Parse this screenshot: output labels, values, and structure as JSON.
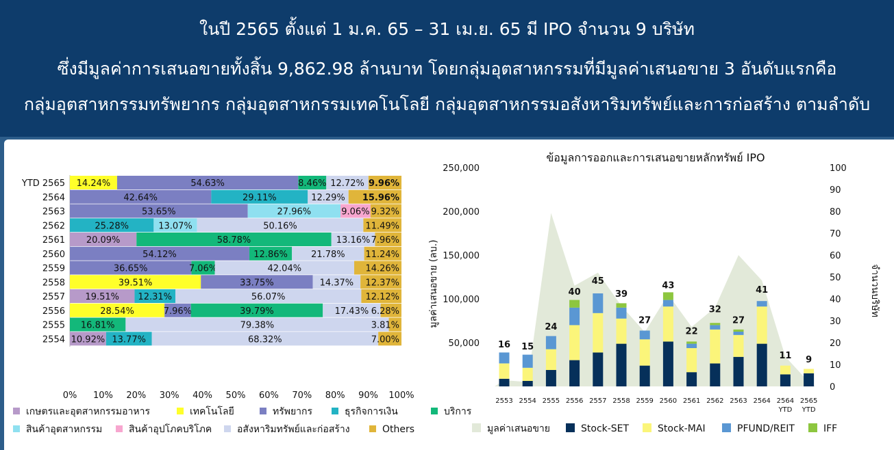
{
  "header": {
    "line1": "ในปี 2565 ตั้งแต่ 1 ม.ค. 65 – 31 เม.ย. 65 มี IPO จำนวน 9 บริษัท",
    "line2": "ซึ่งมีมูลค่าการเสนอขายทั้งสิ้น 9,862.98 ล้านบาท โดยกลุ่มอุตสาหกรรมที่มีมูลค่าเสนอขาย 3 อันดับแรกคือ",
    "line3": "กลุ่มอุตสาหกรรมทรัพยากร กลุ่มอุตสาหกรรมเทคโนโลยี กลุ่มอุตสาหกรรมอสังหาริมทรัพย์และการก่อสร้าง ตามลำดับ"
  },
  "colors": {
    "header_bg": "#0e3c6b",
    "ind_agro": "#b79ac9",
    "ind_tech": "#ffff2a",
    "ind_resource": "#7b7fc2",
    "ind_financial": "#23b3c4",
    "ind_services": "#13b87a",
    "ind_industrial": "#8fe0f0",
    "ind_consumer": "#f7a6cf",
    "ind_property": "#ced6ee",
    "ind_others": "#e0b53a",
    "value_area": "#e2e9d9",
    "set": "#06305a",
    "mai": "#fbf57a",
    "pfund": "#5a97d3",
    "iff": "#8dc63f"
  },
  "chart_data": [
    {
      "type": "bar",
      "orientation": "horizontal",
      "stacked": "percent",
      "categories": [
        "YTD 2565",
        "2564",
        "2563",
        "2562",
        "2561",
        "2560",
        "2559",
        "2558",
        "2557",
        "2556",
        "2555",
        "2554"
      ],
      "series": [
        {
          "name": "เกษตรและอุตสาหกรรมอาหาร",
          "color_key": "ind_agro",
          "values": [
            0,
            0,
            0,
            0,
            20.09,
            0,
            0,
            0,
            19.51,
            0,
            0,
            10.92
          ]
        },
        {
          "name": "เทคโนโลยี",
          "color_key": "ind_tech",
          "values": [
            14.24,
            0,
            0,
            0,
            0,
            0,
            0,
            39.51,
            0,
            28.54,
            0,
            0
          ]
        },
        {
          "name": "ทรัพยากร",
          "color_key": "ind_resource",
          "values": [
            54.63,
            42.64,
            53.65,
            0,
            0,
            54.12,
            36.65,
            33.75,
            0,
            7.96,
            0,
            0
          ]
        },
        {
          "name": "ธุรกิจการเงิน",
          "color_key": "ind_financial",
          "values": [
            0,
            29.11,
            0,
            25.28,
            0,
            0,
            0,
            0,
            12.31,
            0,
            0,
            13.77
          ]
        },
        {
          "name": "บริการ",
          "color_key": "ind_services",
          "values": [
            8.46,
            0,
            0,
            0,
            58.78,
            12.86,
            7.06,
            0,
            0,
            39.79,
            16.81,
            0
          ]
        },
        {
          "name": "สินค้าอุตสาหกรรม",
          "color_key": "ind_industrial",
          "values": [
            0,
            0,
            27.96,
            13.07,
            0,
            0,
            0,
            0,
            0,
            0,
            0,
            0
          ]
        },
        {
          "name": "สินค้าอุปโภคบริโภค",
          "color_key": "ind_consumer",
          "values": [
            0,
            0,
            9.06,
            0,
            0,
            0,
            0,
            0,
            0,
            0,
            0,
            0
          ]
        },
        {
          "name": "อสังหาริมทรัพย์และก่อสร้าง",
          "color_key": "ind_property",
          "values": [
            12.72,
            12.29,
            0,
            50.16,
            13.16,
            21.78,
            42.04,
            14.37,
            56.07,
            17.43,
            79.38,
            68.32
          ]
        },
        {
          "name": "Others",
          "color_key": "ind_others",
          "values": [
            9.96,
            15.96,
            9.32,
            11.49,
            7.96,
            11.24,
            14.26,
            12.37,
            12.12,
            6.28,
            3.81,
            7.0
          ]
        }
      ],
      "labels": [
        [
          "",
          "14.24%",
          "54.63%",
          "",
          "8.46%",
          "",
          "",
          "12.72%",
          "9.96%"
        ],
        [
          "",
          "",
          "42.64%",
          "29.11%",
          "",
          "",
          "",
          "12.29%",
          "15.96%"
        ],
        [
          "",
          "",
          "53.65%",
          "",
          "",
          "27.96%",
          "9.06%",
          "",
          "9.32%"
        ],
        [
          "",
          "",
          "",
          "25.28%",
          "",
          "13.07%",
          "",
          "50.16%",
          "11.49%"
        ],
        [
          "20.09%",
          "",
          "",
          "",
          "58.78%",
          "",
          "",
          "13.16%",
          "7.96%"
        ],
        [
          "",
          "",
          "54.12%",
          "",
          "12.86%",
          "",
          "",
          "21.78%",
          "11.24%"
        ],
        [
          "",
          "",
          "36.65%",
          "",
          "7.06%",
          "",
          "",
          "42.04%",
          "14.26%"
        ],
        [
          "",
          "39.51%",
          "33.75%",
          "",
          "",
          "",
          "",
          "14.37%",
          "12.37%"
        ],
        [
          "19.51%",
          "",
          "",
          "12.31%",
          "",
          "",
          "",
          "56.07%",
          "12.12%"
        ],
        [
          "",
          "28.54%",
          "7.96%",
          "",
          "39.79%",
          "",
          "",
          "17.43%",
          "6.28%"
        ],
        [
          "",
          "",
          "",
          "",
          "16.81%",
          "",
          "",
          "79.38%",
          "3.81%"
        ],
        [
          "10.92%",
          "",
          "",
          "13.77%",
          "",
          "",
          "",
          "68.32%",
          "7.00%"
        ]
      ],
      "xticks": [
        "0%",
        "10%",
        "20%",
        "30%",
        "40%",
        "50%",
        "60%",
        "70%",
        "80%",
        "90%",
        "100%"
      ],
      "xlim": [
        0,
        100
      ],
      "grid": false,
      "legend": {
        "placement": "bottom",
        "row1": [
          "เกษตรและอุตสาหกรรมอาหาร",
          "เทคโนโลยี",
          "ทรัพยากร",
          "ธุรกิจการเงิน",
          "บริการ"
        ],
        "row2": [
          "สินค้าอุตสาหกรรม",
          "สินค้าอุปโภคบริโภค",
          "อสังหาริมทรัพย์และก่อสร้าง",
          "Others"
        ]
      }
    },
    {
      "type": "bar",
      "stacked": true,
      "title": "ข้อมูลการออกและการเสนอขายหลักทรัพย์ IPO",
      "ylabel": "มูลค่าเสนอขาย (ลบ.)",
      "y2label": "จำนวนบริษัท",
      "categories": [
        "2553",
        "2554",
        "2555",
        "2556",
        "2557",
        "2558",
        "2559",
        "2560",
        "2561",
        "2562",
        "2563",
        "2564",
        "2564\nYTD",
        "2565\nYTD"
      ],
      "category_lines": [
        [
          "2553"
        ],
        [
          "2554"
        ],
        [
          "2555"
        ],
        [
          "2556"
        ],
        [
          "2557"
        ],
        [
          "2558"
        ],
        [
          "2559"
        ],
        [
          "2560"
        ],
        [
          "2561"
        ],
        [
          "2562"
        ],
        [
          "2563"
        ],
        [
          "2564"
        ],
        [
          "2564",
          "YTD"
        ],
        [
          "2565",
          "YTD"
        ]
      ],
      "area": {
        "name": "มูลค่าเสนอขาย",
        "values": [
          7000,
          5000,
          198000,
          115000,
          130000,
          92000,
          62000,
          105000,
          68000,
          90000,
          150000,
          121000,
          34000,
          5000
        ]
      },
      "counts_axis": "right",
      "series": [
        {
          "name": "Stock-SET",
          "color_key": "set",
          "values": [
            3.5,
            2.5,
            7.5,
            12,
            15.5,
            19.5,
            9.5,
            20.5,
            6.5,
            10.5,
            13.5,
            19.5,
            5.5,
            6
          ]
        },
        {
          "name": "Stock-MAI",
          "color_key": "mai",
          "values": [
            7,
            6,
            9.5,
            16,
            18,
            11.5,
            12,
            16,
            11,
            15.5,
            10,
            17,
            4,
            2
          ]
        },
        {
          "name": "PFUND/REIT",
          "color_key": "pfund",
          "values": [
            5,
            6,
            6,
            8,
            9,
            5,
            4,
            3,
            2,
            2,
            1.5,
            2.5,
            0,
            0
          ]
        },
        {
          "name": "IFF",
          "color_key": "iff",
          "values": [
            0,
            0,
            0,
            3.5,
            0,
            2,
            0,
            3.5,
            1,
            1,
            1,
            0,
            0,
            0
          ]
        }
      ],
      "count_labels": [
        "16",
        "15",
        "24",
        "40",
        "45",
        "39",
        "27",
        "43",
        "22",
        "32",
        "27",
        "41",
        "11",
        "9"
      ],
      "counts": [
        16,
        15,
        24,
        40,
        45,
        39,
        27,
        43,
        22,
        32,
        27,
        41,
        11,
        9
      ],
      "yticks_left": [
        "50,000",
        "100,000",
        "150,000",
        "200,000",
        "250,000"
      ],
      "yticks_left_values": [
        50000,
        100000,
        150000,
        200000,
        250000
      ],
      "ylim": [
        0,
        250000
      ],
      "yticks_right": [
        "0",
        "10",
        "20",
        "30",
        "40",
        "50",
        "60",
        "70",
        "80",
        "90",
        "100"
      ],
      "y2lim": [
        0,
        100
      ],
      "grid": false,
      "legend": {
        "placement": "bottom",
        "items": [
          "มูลค่าเสนอขาย",
          "Stock-SET",
          "Stock-MAI",
          "PFUND/REIT",
          "IFF"
        ]
      }
    }
  ]
}
